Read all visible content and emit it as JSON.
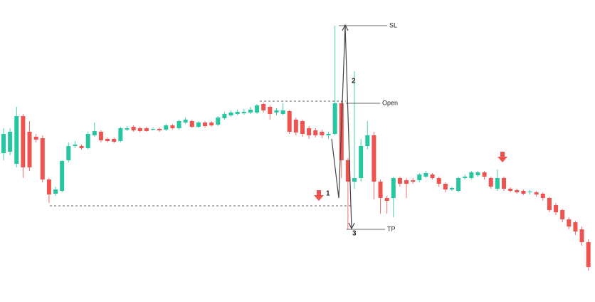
{
  "chart_data": {
    "type": "candlestick",
    "ylim": [
      0,
      424
    ],
    "up_color": "#26c6a0",
    "down_color": "#ef5350",
    "open": [
      209,
      211,
      194,
      261,
      239,
      232,
      230,
      172,
      152,
      156,
      199,
      219,
      219,
      216,
      234,
      239,
      229,
      229,
      226,
      242,
      246,
      244,
      244,
      242,
      243,
      242,
      248,
      244,
      252,
      254,
      246,
      252,
      252,
      249,
      258,
      262,
      264,
      265,
      266,
      266,
      278,
      274,
      266,
      264,
      268,
      256,
      254,
      244,
      241,
      239,
      234,
      236,
      279,
      199,
      169,
      174,
      219,
      234,
      169,
      146,
      146,
      174,
      171,
      171,
      171,
      176,
      179,
      174,
      166,
      158,
      156,
      174,
      174,
      178,
      182,
      174,
      159,
      174,
      159,
      157,
      156,
      154,
      154,
      152,
      146,
      136,
      129,
      116,
      112,
      102,
      84
    ],
    "high": [
      244,
      244,
      274,
      264,
      254,
      236,
      234,
      174,
      162,
      199,
      224,
      226,
      221,
      239,
      252,
      241,
      231,
      231,
      246,
      247,
      248,
      246,
      246,
      245,
      245,
      250,
      250,
      256,
      259,
      256,
      254,
      254,
      254,
      261,
      267,
      269,
      270,
      271,
      274,
      278,
      280,
      276,
      272,
      279,
      270,
      259,
      256,
      247,
      244,
      242,
      239,
      388,
      282,
      202,
      324,
      229,
      254,
      239,
      172,
      149,
      176,
      176,
      174,
      174,
      181,
      184,
      181,
      176,
      168,
      162,
      176,
      179,
      184,
      184,
      184,
      176,
      186,
      176,
      161,
      159,
      158,
      157,
      156,
      154,
      148,
      139,
      131,
      119,
      114,
      106,
      88
    ],
    "low": [
      199,
      206,
      189,
      174,
      184,
      224,
      168,
      139,
      149,
      154,
      196,
      216,
      214,
      214,
      232,
      224,
      224,
      223,
      224,
      240,
      239,
      238,
      239,
      241,
      239,
      240,
      242,
      242,
      250,
      244,
      244,
      245,
      246,
      247,
      256,
      260,
      262,
      263,
      264,
      264,
      266,
      256,
      262,
      262,
      236,
      234,
      232,
      229,
      231,
      230,
      229,
      234,
      174,
      102,
      159,
      169,
      214,
      144,
      124,
      124,
      119,
      162,
      146,
      166,
      168,
      174,
      172,
      162,
      154,
      156,
      154,
      172,
      172,
      176,
      172,
      159,
      156,
      156,
      154,
      152,
      150,
      151,
      148,
      142,
      126,
      122,
      112,
      102,
      94,
      79,
      44
    ],
    "close": [
      236,
      239,
      261,
      189,
      189,
      228,
      172,
      151,
      158,
      198,
      219,
      221,
      216,
      236,
      240,
      227,
      226,
      225,
      244,
      244,
      241,
      240,
      240,
      243,
      241,
      248,
      244,
      254,
      256,
      246,
      252,
      247,
      248,
      259,
      264,
      266,
      267,
      267,
      270,
      276,
      269,
      264,
      269,
      269,
      239,
      238,
      236,
      234,
      234,
      234,
      236,
      279,
      199,
      169,
      174,
      219,
      234,
      169,
      146,
      142,
      174,
      166,
      166,
      169,
      179,
      181,
      174,
      166,
      158,
      160,
      174,
      176,
      182,
      182,
      176,
      162,
      174,
      159,
      156,
      154,
      152,
      155,
      151,
      146,
      129,
      126,
      116,
      106,
      99,
      84,
      49
    ],
    "levels": [
      {
        "label": "SL",
        "value": 388
      },
      {
        "label": "Open",
        "value": 279
      },
      {
        "label": "TP",
        "value": 102
      }
    ],
    "annotations": [
      "1",
      "2",
      "3"
    ]
  }
}
